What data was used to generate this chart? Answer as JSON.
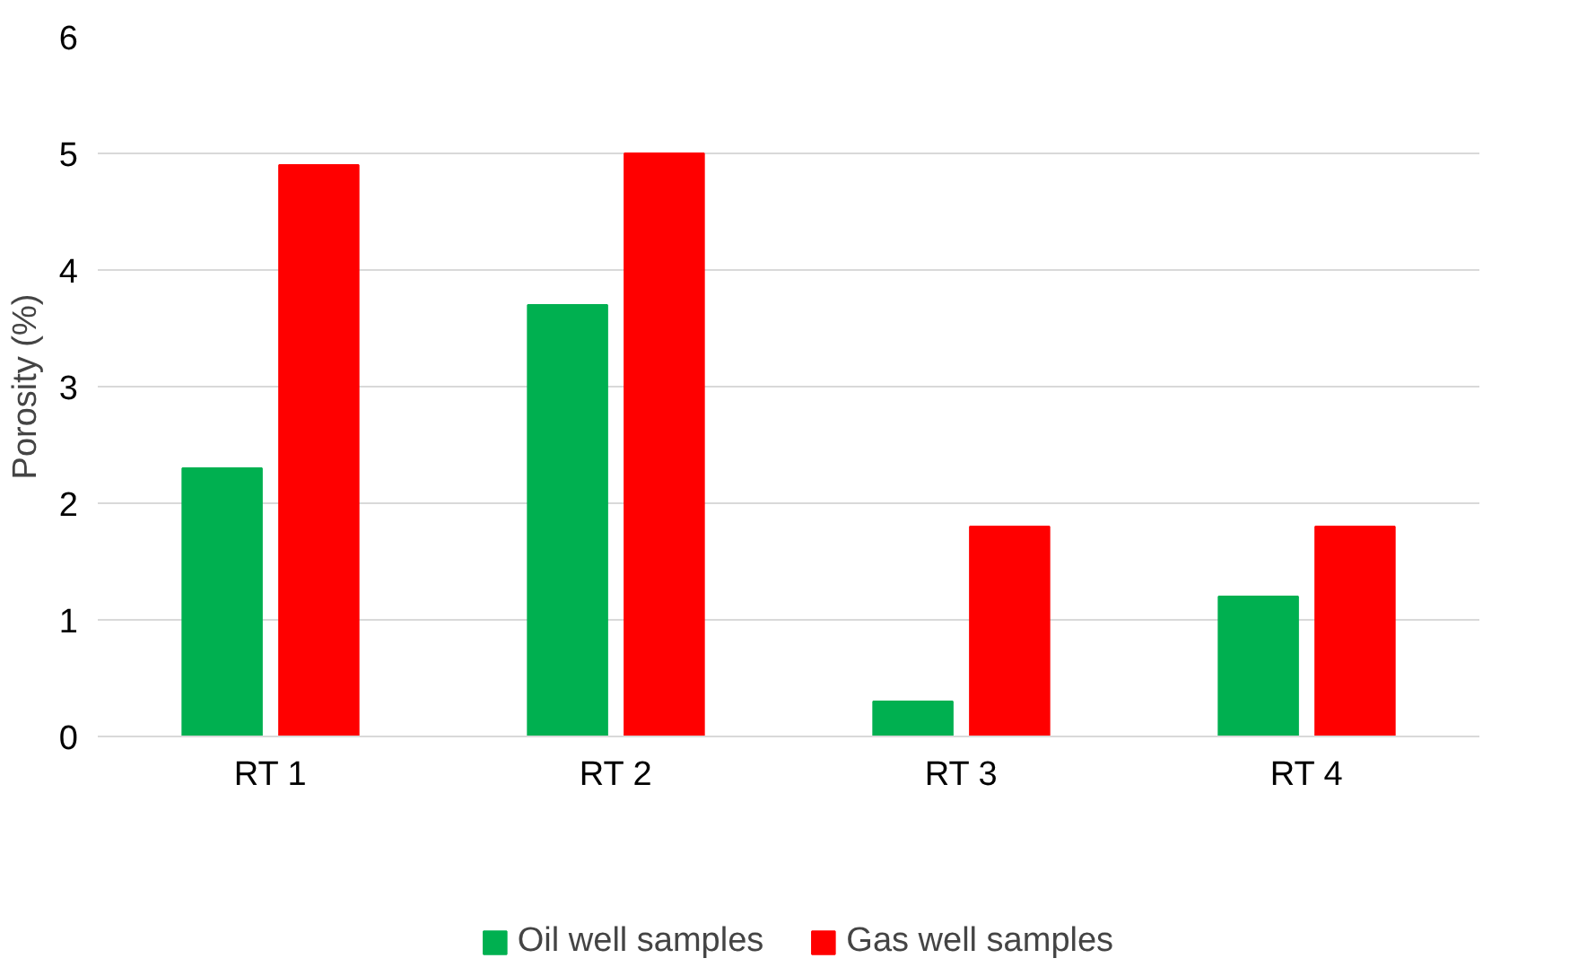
{
  "chart_data": {
    "type": "bar",
    "ylabel": "Porosity (%)",
    "categories": [
      "RT 1",
      "RT 2",
      "RT 3",
      "RT 4"
    ],
    "series": [
      {
        "name": "Oil well samples",
        "color": "#00b050",
        "values": [
          2.3,
          3.7,
          0.3,
          1.2
        ]
      },
      {
        "name": "Gas well samples",
        "color": "#ff0000",
        "values": [
          4.9,
          5.0,
          1.8,
          1.8
        ]
      }
    ],
    "ylim": [
      0,
      6
    ],
    "yticks": [
      0,
      1,
      2,
      3,
      4,
      5,
      6
    ],
    "grid": "y",
    "legend": "bottom"
  }
}
